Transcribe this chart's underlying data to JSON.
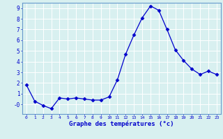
{
  "x": [
    0,
    1,
    2,
    3,
    4,
    5,
    6,
    7,
    8,
    9,
    10,
    11,
    12,
    13,
    14,
    15,
    16,
    17,
    18,
    19,
    20,
    21,
    22,
    23
  ],
  "y": [
    1.8,
    0.3,
    -0.1,
    -0.4,
    0.6,
    0.5,
    0.6,
    0.5,
    0.4,
    0.4,
    0.7,
    2.3,
    4.7,
    6.5,
    8.1,
    9.2,
    8.8,
    7.0,
    5.1,
    4.1,
    3.3,
    2.8,
    3.1,
    2.8
  ],
  "line_color": "#0000cc",
  "marker": "D",
  "marker_size": 2.5,
  "bg_color": "#d8f0f0",
  "grid_color": "#ffffff",
  "xlabel": "Graphe des températures (°c)",
  "ylim": [
    -0.9,
    9.5
  ],
  "xlim": [
    -0.5,
    23.5
  ],
  "yticks": [
    0,
    1,
    2,
    3,
    4,
    5,
    6,
    7,
    8,
    9
  ],
  "ytick_labels": [
    "-0",
    "1",
    "2",
    "3",
    "4",
    "5",
    "6",
    "7",
    "8",
    "9"
  ],
  "xticks": [
    0,
    1,
    2,
    3,
    4,
    5,
    6,
    7,
    8,
    9,
    10,
    11,
    12,
    13,
    14,
    15,
    16,
    17,
    18,
    19,
    20,
    21,
    22,
    23
  ],
  "axis_color": "#aaaaaa",
  "tick_color": "#0000cc",
  "label_color": "#0000cc",
  "spine_color": "#6699cc"
}
